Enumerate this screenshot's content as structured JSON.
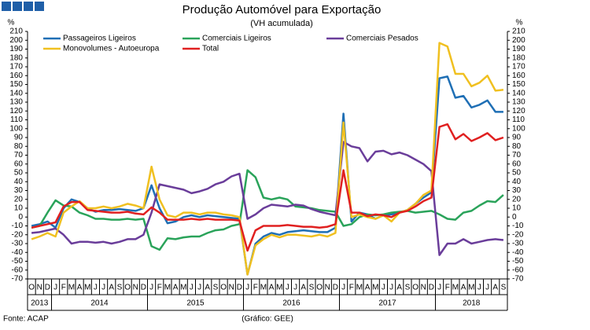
{
  "chart_data": {
    "type": "line",
    "title": "Produção Automóvel para Exportação",
    "subtitle": "(VH acumulada)",
    "y_label": "%",
    "y2_label": "%",
    "source": "Fonte: ACAP",
    "credit": "(Gráfico: GEE)",
    "categories": [
      "O",
      "N",
      "D",
      "J",
      "F",
      "M",
      "A",
      "M",
      "J",
      "J",
      "A",
      "S",
      "O",
      "N",
      "D",
      "J",
      "F",
      "M",
      "A",
      "M",
      "J",
      "J",
      "A",
      "S",
      "O",
      "N",
      "D",
      "J",
      "F",
      "M",
      "A",
      "M",
      "J",
      "J",
      "A",
      "S",
      "O",
      "N",
      "D",
      "J",
      "F",
      "M",
      "A",
      "M",
      "J",
      "J",
      "A",
      "S",
      "O",
      "N",
      "D",
      "J",
      "F",
      "M",
      "A",
      "M",
      "J",
      "J",
      "A",
      "S"
    ],
    "year_labels": [
      "2013",
      "2014",
      "2015",
      "2016",
      "2017",
      "2018"
    ],
    "ylim": [
      -70,
      210
    ],
    "yticks": [
      -70,
      -60,
      -50,
      -40,
      -30,
      -20,
      -10,
      0,
      10,
      20,
      30,
      40,
      50,
      60,
      70,
      80,
      90,
      100,
      110,
      120,
      130,
      140,
      150,
      160,
      170,
      180,
      190,
      200,
      210
    ],
    "y2lim": [
      -70,
      210
    ],
    "y2ticks": [
      -70,
      -60,
      -50,
      -40,
      -30,
      -20,
      -10,
      0,
      10,
      20,
      30,
      40,
      50,
      60,
      70,
      80,
      90,
      100,
      110,
      120,
      130,
      140,
      150,
      160,
      170,
      180,
      190,
      200,
      210
    ],
    "grid": false,
    "series": [
      {
        "name": "Passageiros Ligeiros",
        "color": "#1f6fb5",
        "values": [
          -10,
          -8,
          -5,
          -12,
          10,
          20,
          17,
          10,
          6,
          8,
          8,
          9,
          8,
          7,
          10,
          36,
          10,
          -7,
          -5,
          0,
          2,
          0,
          2,
          1,
          0,
          -1,
          -2,
          -65,
          -30,
          -22,
          -18,
          -20,
          -17,
          -16,
          -15,
          -16,
          -17,
          -17,
          -12,
          117,
          -5,
          5,
          3,
          -2,
          2,
          3,
          5,
          8,
          15,
          22,
          28,
          157,
          159,
          135,
          137,
          124,
          127,
          132,
          119,
          119
        ]
      },
      {
        "name": "Comerciais Ligeiros",
        "color": "#2aa35a",
        "values": [
          -12,
          -10,
          5,
          19,
          13,
          12,
          5,
          2,
          -2,
          -2,
          -3,
          -3,
          -2,
          -3,
          -2,
          -33,
          -37,
          -24,
          -25,
          -23,
          -22,
          -22,
          -18,
          -15,
          -14,
          -10,
          -8,
          53,
          45,
          22,
          20,
          22,
          20,
          12,
          11,
          10,
          8,
          7,
          6,
          -10,
          -8,
          0,
          3,
          2,
          3,
          5,
          6,
          7,
          5,
          6,
          7,
          3,
          -2,
          -3,
          5,
          7,
          13,
          18,
          17,
          25
        ]
      },
      {
        "name": "Comerciais Pesados",
        "color": "#6a3d9a",
        "values": [
          -18,
          -17,
          -15,
          -13,
          -20,
          -30,
          -28,
          -28,
          -29,
          -28,
          -30,
          -28,
          -25,
          -25,
          -20,
          5,
          37,
          35,
          33,
          31,
          27,
          29,
          32,
          37,
          40,
          46,
          49,
          -2,
          3,
          10,
          14,
          13,
          12,
          14,
          13,
          9,
          6,
          4,
          2,
          85,
          80,
          78,
          63,
          74,
          75,
          71,
          73,
          70,
          65,
          60,
          52,
          -43,
          -30,
          -30,
          -25,
          -30,
          -28,
          -26,
          -25,
          -26
        ]
      },
      {
        "name": "Monovolumes - Autoeuropa",
        "color": "#f0c020",
        "values": [
          -25,
          -22,
          -18,
          -22,
          5,
          12,
          18,
          10,
          10,
          12,
          10,
          12,
          15,
          13,
          10,
          57,
          20,
          2,
          0,
          5,
          5,
          3,
          5,
          5,
          3,
          2,
          0,
          -65,
          -32,
          -25,
          -20,
          -23,
          -20,
          -20,
          -21,
          -22,
          -20,
          -22,
          -18,
          107,
          0,
          3,
          0,
          -2,
          2,
          -5,
          5,
          8,
          15,
          25,
          30,
          197,
          193,
          162,
          162,
          148,
          152,
          160,
          143,
          144
        ]
      },
      {
        "name": "Total",
        "color": "#e02020",
        "values": [
          -12,
          -10,
          -8,
          -6,
          12,
          17,
          17,
          8,
          7,
          6,
          5,
          5,
          6,
          4,
          3,
          11,
          5,
          -3,
          -3,
          -3,
          -2,
          -3,
          -2,
          -3,
          -3,
          -3,
          -4,
          -38,
          -15,
          -10,
          -10,
          -10,
          -9,
          -10,
          -11,
          -11,
          -12,
          -11,
          -8,
          53,
          5,
          5,
          1,
          3,
          2,
          0,
          5,
          7,
          12,
          18,
          22,
          102,
          105,
          88,
          94,
          86,
          90,
          95,
          87,
          90
        ]
      }
    ]
  }
}
